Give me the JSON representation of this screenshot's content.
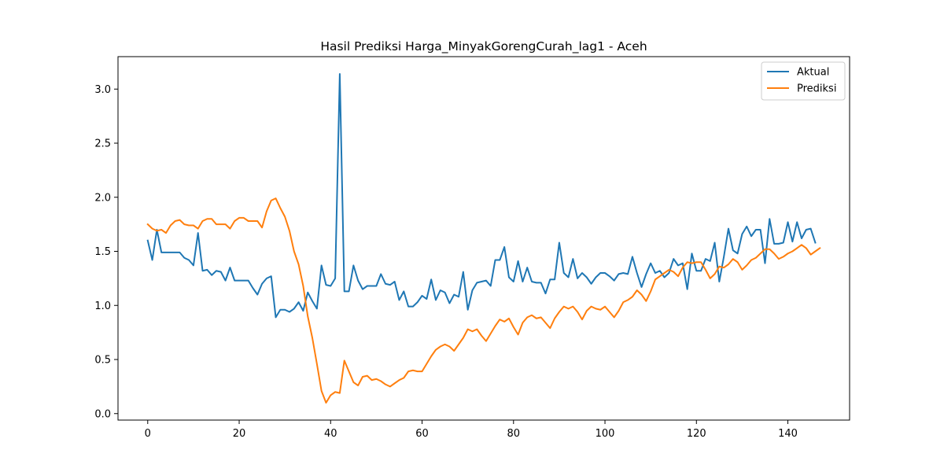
{
  "chart_data": {
    "type": "line",
    "title": "Hasil Prediksi Harga_MinyakGorengCurah_lag1 - Aceh",
    "xlabel": "",
    "ylabel": "",
    "xlim": [
      -6.5,
      153.5
    ],
    "ylim": [
      -0.06,
      3.3
    ],
    "xticks": [
      0,
      20,
      40,
      60,
      80,
      100,
      120,
      140
    ],
    "yticks": [
      0.0,
      0.5,
      1.0,
      1.5,
      2.0,
      2.5,
      3.0
    ],
    "xtick_labels": [
      "0",
      "20",
      "40",
      "60",
      "80",
      "100",
      "120",
      "140"
    ],
    "ytick_labels": [
      "0.0",
      "0.5",
      "1.0",
      "1.5",
      "2.0",
      "2.5",
      "3.0"
    ],
    "grid": false,
    "legend_position": "top-right",
    "series": [
      {
        "name": "Aktual",
        "color": "#1f77b4",
        "values": [
          1.6,
          1.42,
          1.7,
          1.49,
          1.49,
          1.49,
          1.49,
          1.49,
          1.44,
          1.42,
          1.37,
          1.67,
          1.32,
          1.33,
          1.28,
          1.32,
          1.31,
          1.23,
          1.35,
          1.23,
          1.23,
          1.23,
          1.23,
          1.16,
          1.1,
          1.2,
          1.25,
          1.27,
          0.89,
          0.96,
          0.96,
          0.94,
          0.97,
          1.03,
          0.95,
          1.12,
          1.04,
          0.97,
          1.37,
          1.19,
          1.18,
          1.25,
          3.14,
          1.13,
          1.13,
          1.37,
          1.23,
          1.15,
          1.18,
          1.18,
          1.18,
          1.29,
          1.2,
          1.19,
          1.22,
          1.05,
          1.13,
          0.99,
          0.99,
          1.03,
          1.09,
          1.06,
          1.24,
          1.05,
          1.14,
          1.12,
          1.02,
          1.1,
          1.08,
          1.31,
          0.96,
          1.14,
          1.21,
          1.22,
          1.23,
          1.18,
          1.42,
          1.42,
          1.54,
          1.26,
          1.22,
          1.41,
          1.22,
          1.35,
          1.22,
          1.21,
          1.21,
          1.11,
          1.24,
          1.24,
          1.58,
          1.3,
          1.26,
          1.43,
          1.25,
          1.3,
          1.26,
          1.2,
          1.26,
          1.3,
          1.3,
          1.27,
          1.23,
          1.29,
          1.3,
          1.29,
          1.45,
          1.3,
          1.17,
          1.29,
          1.39,
          1.3,
          1.32,
          1.26,
          1.3,
          1.43,
          1.37,
          1.39,
          1.15,
          1.48,
          1.32,
          1.32,
          1.43,
          1.41,
          1.58,
          1.22,
          1.45,
          1.71,
          1.51,
          1.48,
          1.66,
          1.73,
          1.64,
          1.7,
          1.7,
          1.39,
          1.8,
          1.57,
          1.57,
          1.58,
          1.77,
          1.59,
          1.77,
          1.62,
          1.7,
          1.71,
          1.58
        ]
      },
      {
        "name": "Prediksi",
        "color": "#ff7f0e",
        "values": [
          1.75,
          1.71,
          1.69,
          1.7,
          1.67,
          1.74,
          1.78,
          1.79,
          1.75,
          1.74,
          1.74,
          1.71,
          1.78,
          1.8,
          1.8,
          1.75,
          1.75,
          1.75,
          1.71,
          1.78,
          1.81,
          1.81,
          1.78,
          1.78,
          1.78,
          1.72,
          1.87,
          1.97,
          1.99,
          1.9,
          1.82,
          1.69,
          1.5,
          1.38,
          1.18,
          0.9,
          0.7,
          0.46,
          0.21,
          0.1,
          0.17,
          0.2,
          0.19,
          0.49,
          0.39,
          0.29,
          0.26,
          0.34,
          0.35,
          0.31,
          0.32,
          0.3,
          0.27,
          0.25,
          0.28,
          0.31,
          0.33,
          0.39,
          0.4,
          0.39,
          0.39,
          0.46,
          0.53,
          0.59,
          0.62,
          0.64,
          0.62,
          0.58,
          0.64,
          0.7,
          0.78,
          0.76,
          0.78,
          0.72,
          0.67,
          0.74,
          0.81,
          0.87,
          0.85,
          0.88,
          0.8,
          0.73,
          0.84,
          0.89,
          0.91,
          0.88,
          0.89,
          0.84,
          0.79,
          0.88,
          0.94,
          0.99,
          0.97,
          0.99,
          0.94,
          0.87,
          0.95,
          0.99,
          0.97,
          0.96,
          0.99,
          0.94,
          0.89,
          0.95,
          1.03,
          1.05,
          1.08,
          1.14,
          1.1,
          1.04,
          1.13,
          1.24,
          1.27,
          1.3,
          1.33,
          1.31,
          1.27,
          1.35,
          1.4,
          1.39,
          1.4,
          1.4,
          1.33,
          1.25,
          1.29,
          1.36,
          1.35,
          1.38,
          1.43,
          1.4,
          1.33,
          1.37,
          1.42,
          1.44,
          1.48,
          1.52,
          1.52,
          1.48,
          1.43,
          1.45,
          1.48,
          1.5,
          1.53,
          1.56,
          1.53,
          1.47,
          1.5,
          1.53
        ]
      }
    ]
  }
}
